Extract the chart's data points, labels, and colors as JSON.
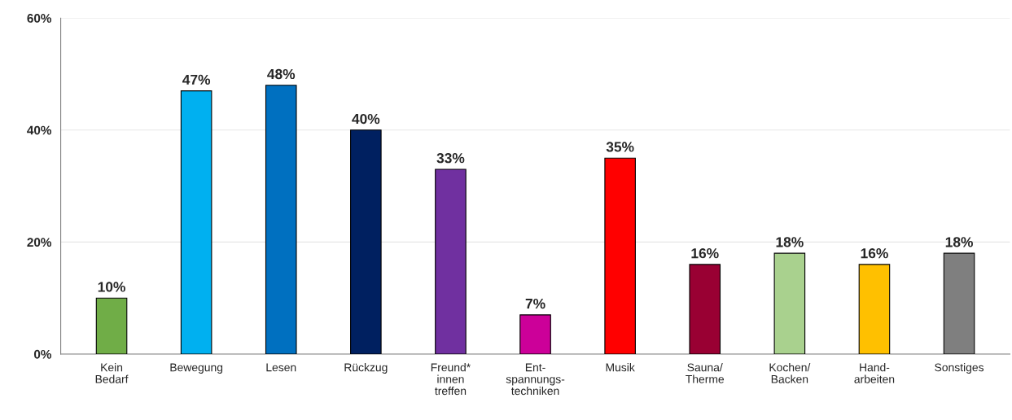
{
  "chart_data": {
    "type": "bar",
    "categories": [
      "Kein\nBedarf",
      "Bewegung",
      "Lesen",
      "Rückzug",
      "Freund*\ninnen\ntreffen",
      "Ent-\nspannungs-\ntechniken",
      "Musik",
      "Sauna/\nTherme",
      "Kochen/\nBacken",
      "Hand-\narbeiten",
      "Sonstiges"
    ],
    "values": [
      10,
      47,
      48,
      40,
      33,
      7,
      35,
      16,
      18,
      16,
      18
    ],
    "value_labels": [
      "10%",
      "47%",
      "48%",
      "40%",
      "33%",
      "7%",
      "35%",
      "16%",
      "18%",
      "16%",
      "18%"
    ],
    "colors": [
      "#70ad47",
      "#00b0f0",
      "#0070c0",
      "#002060",
      "#7030a0",
      "#cc0099",
      "#ff0000",
      "#990033",
      "#a9d18e",
      "#ffc000",
      "#7f7f7f"
    ],
    "ylim": [
      0,
      60
    ],
    "yticks": [
      {
        "value": 0,
        "label": "0%"
      },
      {
        "value": 20,
        "label": "20%"
      },
      {
        "value": 40,
        "label": "40%"
      },
      {
        "value": 60,
        "label": "60%"
      }
    ],
    "grid": "y",
    "legend": false
  }
}
